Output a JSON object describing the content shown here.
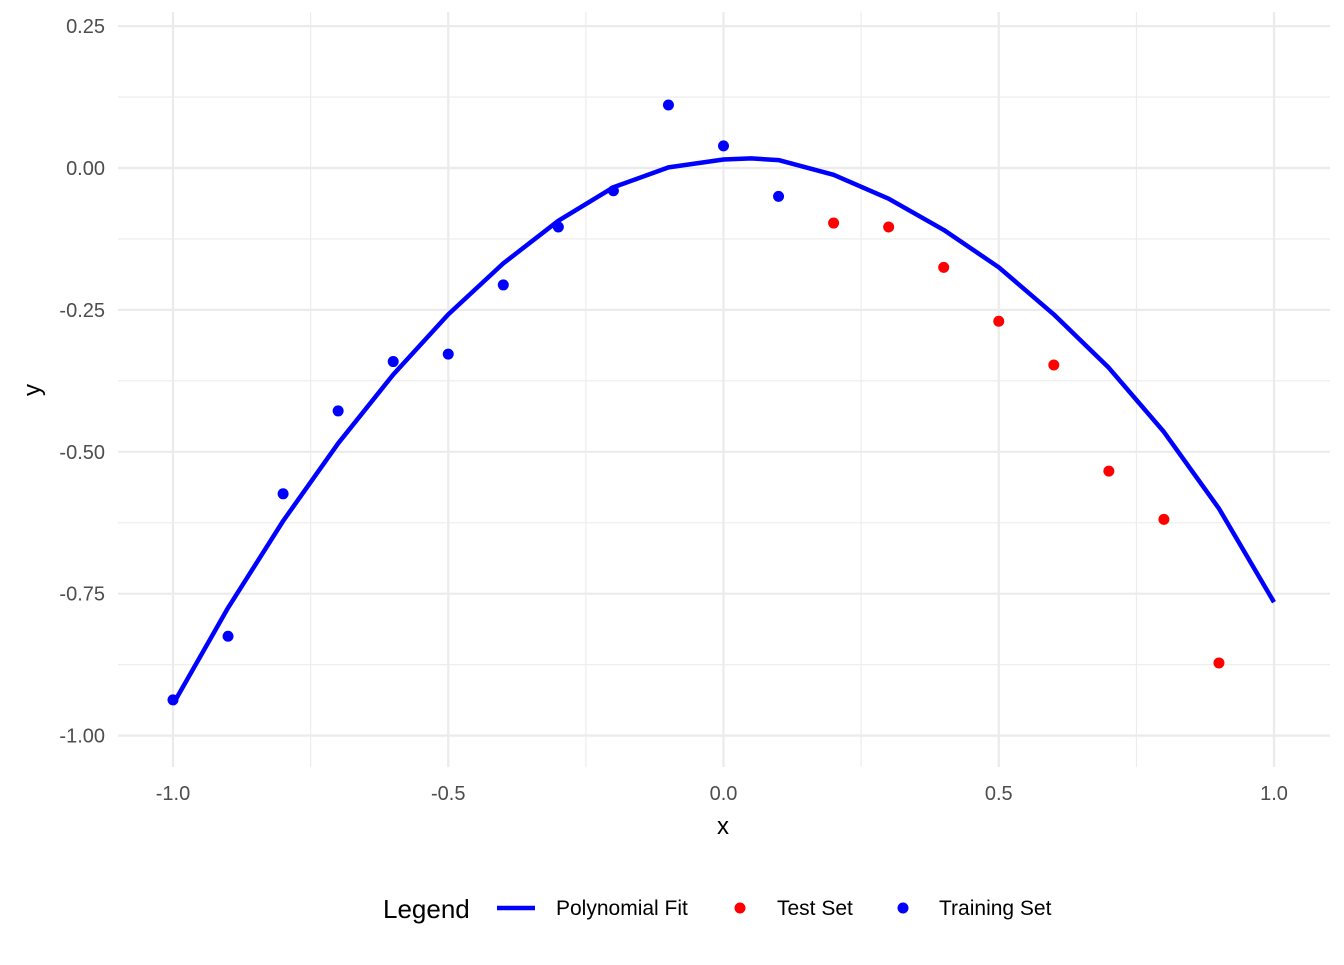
{
  "chart_data": {
    "type": "scatter",
    "title": "",
    "xlabel": "x",
    "ylabel": "y",
    "xlim": [
      -1.1,
      1.1
    ],
    "ylim": [
      -1.05,
      0.27
    ],
    "x_ticks": [
      {
        "value": -1.0,
        "label": "-1.0"
      },
      {
        "value": -0.5,
        "label": "-0.5"
      },
      {
        "value": 0.0,
        "label": "0.0"
      },
      {
        "value": 0.5,
        "label": "0.5"
      },
      {
        "value": 1.0,
        "label": "1.0"
      }
    ],
    "y_ticks": [
      {
        "value": 0.25,
        "label": "0.25"
      },
      {
        "value": 0.0,
        "label": "0.00"
      },
      {
        "value": -0.25,
        "label": "-0.25"
      },
      {
        "value": -0.5,
        "label": "-0.50"
      },
      {
        "value": -0.75,
        "label": "-0.75"
      },
      {
        "value": -1.0,
        "label": "-1.00"
      }
    ],
    "grid": true,
    "legend": {
      "title": "Legend",
      "position": "bottom",
      "entries": [
        {
          "label": "Polynomial Fit",
          "kind": "line",
          "color": "#0000ff"
        },
        {
          "label": "Test Set",
          "kind": "point",
          "color": "#ff0000"
        },
        {
          "label": "Training Set",
          "kind": "point",
          "color": "#0000ff"
        }
      ]
    },
    "series": [
      {
        "name": "Training Set",
        "kind": "point",
        "color": "#0000ff",
        "x": [
          -1.0,
          -0.9,
          -0.8,
          -0.7,
          -0.6,
          -0.5,
          -0.4,
          -0.3,
          -0.2,
          -0.1,
          0.0,
          0.1
        ],
        "y": [
          -0.937,
          -0.825,
          -0.574,
          -0.428,
          -0.341,
          -0.328,
          -0.206,
          -0.104,
          -0.04,
          0.111,
          0.039,
          -0.05
        ]
      },
      {
        "name": "Test Set",
        "kind": "point",
        "color": "#ff0000",
        "x": [
          0.2,
          0.3,
          0.4,
          0.5,
          0.6,
          0.7,
          0.8,
          0.9
        ],
        "y": [
          -0.097,
          -0.104,
          -0.175,
          -0.27,
          -0.347,
          -0.534,
          -0.619,
          -0.872
        ]
      },
      {
        "name": "Polynomial Fit",
        "kind": "line",
        "color": "#0000ff",
        "x": [
          -1.0,
          -0.9,
          -0.8,
          -0.7,
          -0.6,
          -0.5,
          -0.4,
          -0.3,
          -0.2,
          -0.1,
          0.0,
          0.05,
          0.1,
          0.2,
          0.3,
          0.4,
          0.5,
          0.6,
          0.7,
          0.8,
          0.9,
          1.0
        ],
        "y": [
          -0.945,
          -0.775,
          -0.622,
          -0.485,
          -0.364,
          -0.258,
          -0.168,
          -0.093,
          -0.034,
          0.001,
          0.015,
          0.017,
          0.014,
          -0.012,
          -0.054,
          -0.109,
          -0.175,
          -0.258,
          -0.352,
          -0.465,
          -0.6,
          -0.765
        ]
      }
    ]
  }
}
